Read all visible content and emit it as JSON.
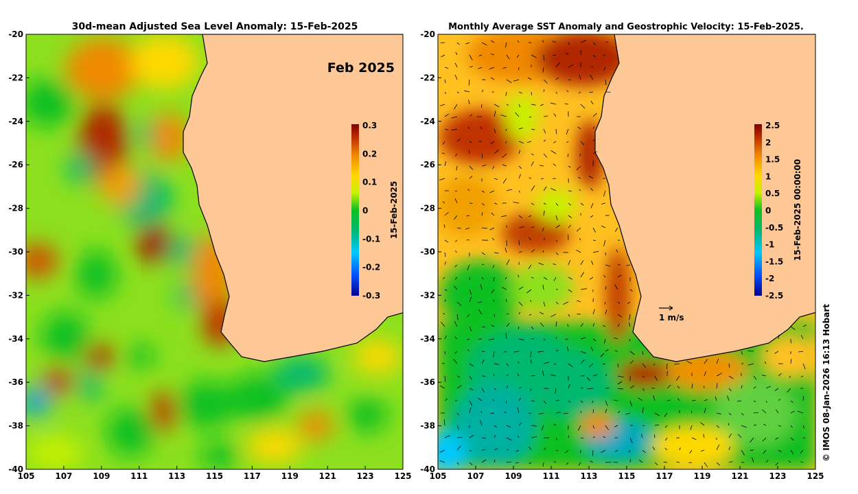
{
  "left_panel": {
    "title": "30d-mean Adjusted Sea Level Anomaly: 15-Feb-2025",
    "badge": "Feb 2025",
    "colorbar": {
      "label": "15-Feb-2025",
      "ticks": [
        "0.3",
        "0.2",
        "0.1",
        "0",
        "-0.1",
        "-0.2",
        "-0.3"
      ],
      "range": [
        -0.3,
        0.3
      ]
    }
  },
  "right_panel": {
    "title": "Monthly Average SST Anomaly  and Geostrophic Velocity: 15-Feb-2025.",
    "scale_label": "1 m/s",
    "colorbar": {
      "label": "15-Feb-2025 00:00:00",
      "ticks": [
        "2.5",
        "2",
        "1.5",
        "1",
        "0.5",
        "0",
        "-0.5",
        "-1",
        "-1.5",
        "-2",
        "-2.5"
      ],
      "range": [
        -2.5,
        2.5
      ]
    }
  },
  "axes": {
    "lon_ticks": [
      "105",
      "107",
      "109",
      "111",
      "113",
      "115",
      "117",
      "119",
      "121",
      "123",
      "125"
    ],
    "lat_ticks": [
      "-20",
      "-22",
      "-24",
      "-26",
      "-28",
      "-30",
      "-32",
      "-34",
      "-36",
      "-38",
      "-40"
    ],
    "lon_range": [
      105,
      125
    ],
    "lat_range": [
      -40,
      -20
    ]
  },
  "credit": "© IMOS 08-Jan-2026 16:13 Hobart",
  "colors": {
    "land": "#fdc896",
    "coast": "#000000",
    "cmap": [
      "#00008f",
      "#0050ff",
      "#00c8ff",
      "#00b870",
      "#10c020",
      "#c8f000",
      "#ffd800",
      "#f08800",
      "#c03000",
      "#800000"
    ]
  }
}
